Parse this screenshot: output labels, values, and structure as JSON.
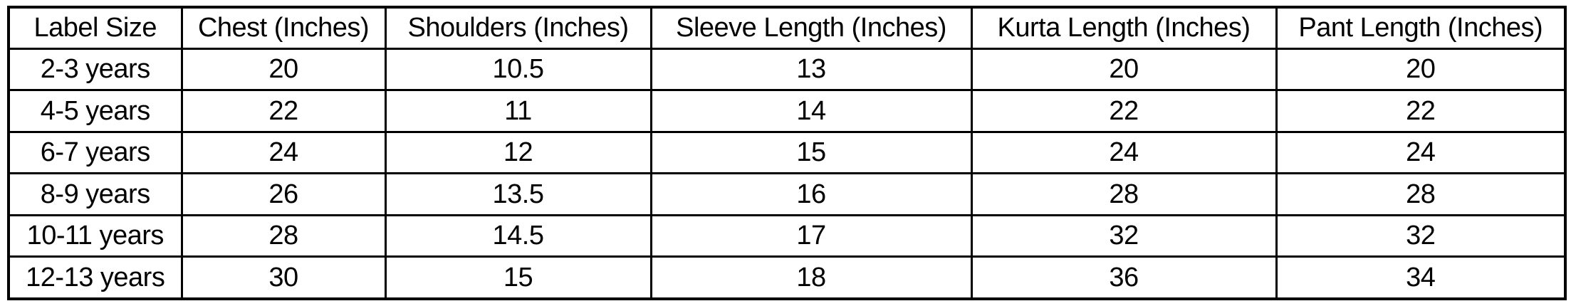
{
  "chart_data": {
    "type": "table",
    "columns": [
      "Label Size",
      "Chest (Inches)",
      "Shoulders (Inches)",
      "Sleeve Length (Inches)",
      "Kurta Length (Inches)",
      "Pant Length (Inches)"
    ],
    "rows": [
      [
        "2-3 years",
        "20",
        "10.5",
        "13",
        "20",
        "20"
      ],
      [
        "4-5 years",
        "22",
        "11",
        "14",
        "22",
        "22"
      ],
      [
        "6-7 years",
        "24",
        "12",
        "15",
        "24",
        "24"
      ],
      [
        "8-9 years",
        "26",
        "13.5",
        "16",
        "28",
        "28"
      ],
      [
        "10-11 years",
        "28",
        "14.5",
        "17",
        "32",
        "32"
      ],
      [
        "12-13 years",
        "30",
        "15",
        "18",
        "36",
        "34"
      ]
    ],
    "layout": {
      "grid": "on",
      "border_color": "#000000",
      "background_color": "#ffffff",
      "text_color": "#000000"
    }
  }
}
